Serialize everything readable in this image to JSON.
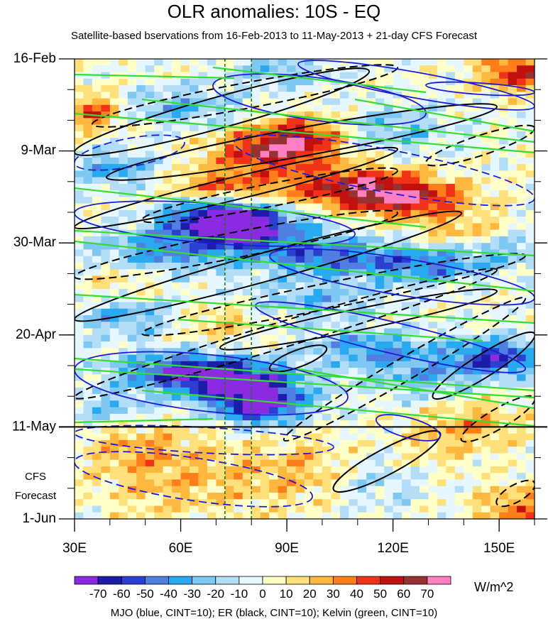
{
  "chart_data": {
    "type": "heatmap",
    "title": "OLR anomalies: 10S - EQ",
    "subtitle": "Satellite-based bservations from 16-Feb-2013 to 11-May-2013 + 21-day CFS Forecast",
    "y_ticks": [
      {
        "label": "16-Feb",
        "day": 0
      },
      {
        "label": "9-Mar",
        "day": 21
      },
      {
        "label": "30-Mar",
        "day": 42
      },
      {
        "label": "20-Apr",
        "day": 63
      },
      {
        "label": "11-May",
        "day": 84
      },
      {
        "label": "1-Jun",
        "day": 105
      }
    ],
    "ylim": [
      0,
      105
    ],
    "observation_end_day": 84,
    "forecast_label": [
      "CFS",
      "Forecast"
    ],
    "x_ticks": [
      {
        "label": "30E",
        "lon": 30
      },
      {
        "label": "60E",
        "lon": 60
      },
      {
        "label": "90E",
        "lon": 90
      },
      {
        "label": "120E",
        "lon": 120
      },
      {
        "label": "150E",
        "lon": 150
      }
    ],
    "xlim": [
      30,
      160
    ],
    "reference_lons": [
      72.5,
      80
    ],
    "colorbar": {
      "units": "W/m^2",
      "labels": [
        "-70",
        "-60",
        "-50",
        "-40",
        "-30",
        "-20",
        "-10",
        "0",
        "10",
        "20",
        "30",
        "40",
        "50",
        "60",
        "70"
      ],
      "colors": [
        "#8a2be2",
        "#1c1ca8",
        "#2b3fd1",
        "#4f7fe0",
        "#29a9f0",
        "#7ec8f2",
        "#b4ddf7",
        "#e6f7ff",
        "#ffffc8",
        "#ffe07a",
        "#ffb83f",
        "#ff7d1a",
        "#f03218",
        "#c01010",
        "#963232",
        "#ff80c0"
      ]
    },
    "footer": "MJO (blue, CINT=10); ER (black, CINT=10); Kelvin (green, CINT=10)",
    "series_colors": {
      "mjo": "#1c1cd8",
      "er": "#000000",
      "kelvin": "#33dd33"
    }
  }
}
